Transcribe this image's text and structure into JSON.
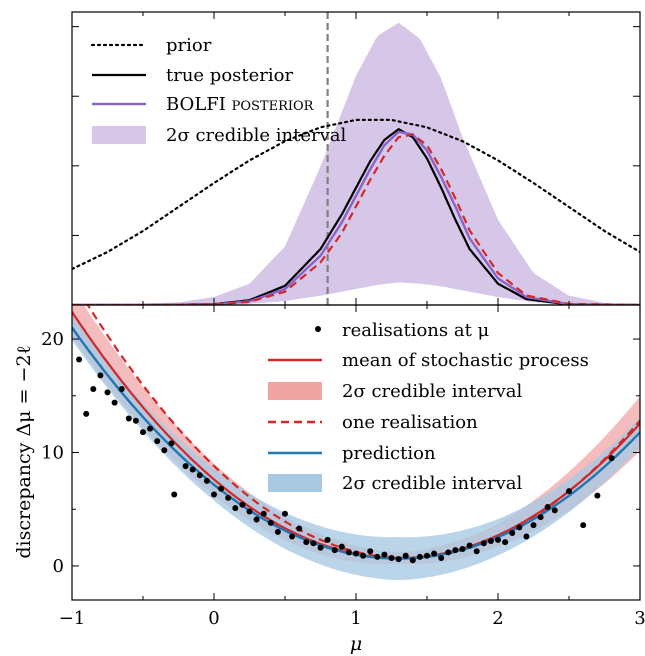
{
  "colors": {
    "prior": "#000000",
    "true_posterior": "#000000",
    "bolfi_posterior": "#8a63c8",
    "bolfi_band": "#d6c7e8",
    "mean": "#d62728",
    "mean_band": "#f0a5a5",
    "prediction": "#1f77b4",
    "prediction_band": "#a9c9e3",
    "dashed_vertical": "#808080",
    "points": "#000000"
  },
  "chart_data": [
    {
      "type": "line",
      "panel": "top",
      "xlim": [
        -1,
        3
      ],
      "ylim": [
        0,
        1.1
      ],
      "x_ticks_labels": [],
      "y_ticks_labels": [],
      "vertical_line_x": 0.8,
      "legend": {
        "placement": "top-left",
        "entries": [
          {
            "key": "prior",
            "label": "prior"
          },
          {
            "key": "true",
            "label": "true posterior"
          },
          {
            "key": "bolfi",
            "label": "BOLFI posterior"
          },
          {
            "key": "band",
            "label": "2σ credible interval"
          }
        ]
      },
      "series": [
        {
          "name": "prior",
          "style": "dotted",
          "x": [
            -1.0,
            -0.75,
            -0.5,
            -0.25,
            0.0,
            0.25,
            0.5,
            0.75,
            1.0,
            1.25,
            1.5,
            1.75,
            2.0,
            2.25,
            2.5,
            2.75,
            3.0
          ],
          "y": [
            0.135,
            0.199,
            0.278,
            0.368,
            0.458,
            0.543,
            0.615,
            0.667,
            0.695,
            0.695,
            0.667,
            0.615,
            0.543,
            0.458,
            0.368,
            0.278,
            0.199
          ]
        },
        {
          "name": "true posterior",
          "style": "solid",
          "x": [
            -1.0,
            -0.5,
            0.0,
            0.25,
            0.5,
            0.75,
            0.9,
            1.0,
            1.1,
            1.2,
            1.3,
            1.4,
            1.5,
            1.6,
            1.7,
            1.8,
            2.0,
            2.2,
            2.5,
            3.0
          ],
          "y": [
            0.0,
            0.0,
            0.003,
            0.018,
            0.072,
            0.21,
            0.34,
            0.44,
            0.54,
            0.62,
            0.66,
            0.63,
            0.55,
            0.44,
            0.32,
            0.21,
            0.08,
            0.022,
            0.002,
            0.0
          ]
        },
        {
          "name": "BOLFI posterior",
          "style": "solid",
          "x": [
            -1.0,
            -0.5,
            0.0,
            0.25,
            0.5,
            0.75,
            0.9,
            1.0,
            1.1,
            1.2,
            1.3,
            1.4,
            1.5,
            1.6,
            1.7,
            1.8,
            2.0,
            2.2,
            2.5,
            3.0
          ],
          "y": [
            0.0,
            0.0,
            0.002,
            0.014,
            0.06,
            0.185,
            0.31,
            0.41,
            0.51,
            0.6,
            0.65,
            0.64,
            0.58,
            0.48,
            0.37,
            0.25,
            0.1,
            0.03,
            0.003,
            0.0
          ]
        },
        {
          "name": "BOLFI posterior (dashed)",
          "style": "dashed",
          "x": [
            -1.0,
            -0.5,
            0.0,
            0.25,
            0.5,
            0.75,
            0.9,
            1.0,
            1.1,
            1.2,
            1.3,
            1.4,
            1.5,
            1.6,
            1.7,
            1.8,
            2.0,
            2.2,
            2.5,
            3.0
          ],
          "y": [
            0.0,
            0.0,
            0.002,
            0.012,
            0.05,
            0.16,
            0.27,
            0.37,
            0.47,
            0.56,
            0.63,
            0.64,
            0.6,
            0.51,
            0.4,
            0.28,
            0.12,
            0.036,
            0.004,
            0.0
          ]
        }
      ],
      "band": {
        "x": [
          -1.0,
          -0.5,
          -0.25,
          0.0,
          0.25,
          0.5,
          0.75,
          1.0,
          1.15,
          1.3,
          1.45,
          1.6,
          1.75,
          2.0,
          2.25,
          2.5,
          2.75,
          3.0
        ],
        "lower": [
          0.0,
          0.0,
          0.0,
          0.0,
          0.004,
          0.015,
          0.035,
          0.06,
          0.075,
          0.085,
          0.08,
          0.07,
          0.055,
          0.03,
          0.01,
          0.003,
          0.0,
          0.0
        ],
        "upper": [
          0.0,
          0.004,
          0.01,
          0.03,
          0.08,
          0.22,
          0.52,
          0.86,
          1.01,
          1.06,
          1.0,
          0.85,
          0.63,
          0.32,
          0.12,
          0.035,
          0.008,
          0.0
        ]
      }
    },
    {
      "type": "line",
      "panel": "bottom",
      "xlabel": "μ",
      "ylabel": "discrepancy Δμ = −2ℓ",
      "xlim": [
        -1,
        3
      ],
      "ylim": [
        -3,
        23
      ],
      "x_ticks": [
        -1,
        0,
        1,
        2,
        3
      ],
      "x_tick_labels": [
        "−1",
        "0",
        "1",
        "2",
        "3"
      ],
      "y_ticks": [
        0,
        10,
        20
      ],
      "y_tick_labels": [
        "0",
        "10",
        "20"
      ],
      "legend": {
        "placement": "top-right",
        "entries": [
          {
            "key": "points",
            "label": "realisations at μ"
          },
          {
            "key": "mean",
            "label": "mean of stochastic process"
          },
          {
            "key": "meanband",
            "label": "2σ credible interval"
          },
          {
            "key": "one",
            "label": "one realisation"
          },
          {
            "key": "pred",
            "label": "prediction"
          },
          {
            "key": "predband",
            "label": "2σ credible interval"
          }
        ]
      },
      "mean": {
        "x0": 1.3,
        "y0": 0.7,
        "a": 4.1
      },
      "mean_band_halfwidth": [
        [
          -1.0,
          2.2
        ],
        [
          0.0,
          1.4
        ],
        [
          1.3,
          0.5
        ],
        [
          2.0,
          1.0
        ],
        [
          3.0,
          2.4
        ]
      ],
      "one_realisation": {
        "x0": 1.35,
        "y0": 0.7,
        "a": 4.45
      },
      "prediction": {
        "x0": 1.3,
        "y0": 0.65,
        "a": 3.85
      },
      "prediction_band_halfwidth": [
        [
          -1.0,
          1.1
        ],
        [
          0.0,
          1.4
        ],
        [
          1.3,
          1.9
        ],
        [
          2.0,
          1.6
        ],
        [
          3.0,
          1.3
        ]
      ],
      "points": {
        "x": [
          -0.95,
          -0.9,
          -0.85,
          -0.8,
          -0.75,
          -0.7,
          -0.65,
          -0.6,
          -0.55,
          -0.5,
          -0.45,
          -0.4,
          -0.35,
          -0.3,
          -0.28,
          -0.2,
          -0.15,
          -0.1,
          -0.05,
          0.0,
          0.05,
          0.1,
          0.15,
          0.2,
          0.25,
          0.3,
          0.35,
          0.4,
          0.45,
          0.5,
          0.55,
          0.6,
          0.65,
          0.7,
          0.75,
          0.8,
          0.85,
          0.9,
          0.95,
          1.0,
          1.05,
          1.1,
          1.15,
          1.2,
          1.25,
          1.3,
          1.35,
          1.4,
          1.45,
          1.5,
          1.55,
          1.6,
          1.65,
          1.7,
          1.75,
          1.8,
          1.85,
          1.9,
          1.95,
          2.0,
          2.05,
          2.1,
          2.15,
          2.2,
          2.25,
          2.3,
          2.35,
          2.4,
          2.5,
          2.6,
          2.7,
          2.8
        ],
        "y": [
          18.2,
          13.4,
          15.6,
          16.8,
          15.3,
          14.4,
          15.6,
          13.0,
          12.8,
          11.8,
          12.1,
          11.0,
          10.2,
          10.8,
          6.3,
          8.8,
          8.5,
          8.0,
          7.5,
          6.3,
          6.8,
          6.0,
          5.1,
          5.4,
          4.8,
          4.1,
          4.6,
          3.8,
          3.0,
          4.6,
          2.6,
          3.3,
          2.1,
          2.0,
          1.6,
          2.3,
          1.4,
          1.7,
          1.2,
          1.1,
          0.9,
          1.3,
          0.8,
          1.0,
          0.7,
          0.6,
          0.9,
          0.5,
          0.8,
          0.9,
          1.1,
          0.7,
          1.2,
          1.4,
          1.5,
          1.8,
          1.3,
          2.0,
          2.2,
          2.3,
          2.1,
          2.9,
          3.4,
          2.6,
          3.6,
          4.3,
          5.2,
          4.9,
          6.6,
          3.6,
          6.2,
          9.5
        ]
      }
    }
  ]
}
